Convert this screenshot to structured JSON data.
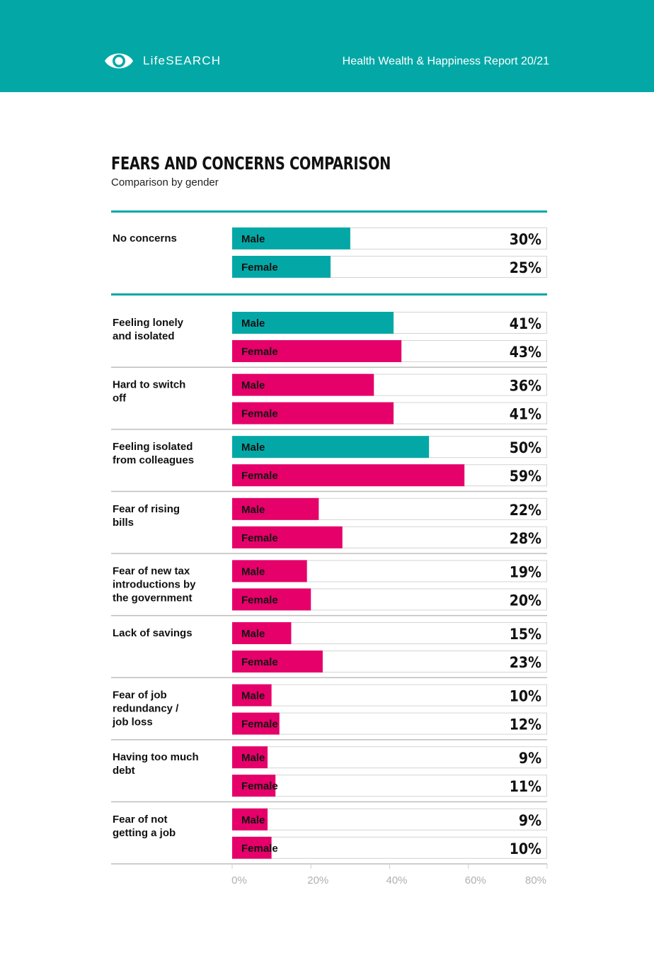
{
  "header": {
    "brand": "LifeSEARCH",
    "report_title": "Health Wealth & Happiness Report 20/21",
    "logo_icon": "eye-logo-icon",
    "background": "#03a8a6"
  },
  "colors": {
    "teal": "#03a8a6",
    "pink": "#e5006a",
    "track_border": "#d4d4d4",
    "divider": "#bdbdbd"
  },
  "chart_data": {
    "type": "bar",
    "orientation": "horizontal",
    "title": "FEARS AND CONCERNS COMPARISON",
    "subtitle": "Comparison by gender",
    "xlim": [
      0,
      80
    ],
    "ticks": [
      "0%",
      "20%",
      "40%",
      "60%",
      "80%"
    ],
    "series_names": [
      "Male",
      "Female"
    ],
    "categories": [
      {
        "label": [
          "No concerns"
        ],
        "male": 30,
        "female": 25,
        "male_value": "30%",
        "female_value": "25%",
        "male_color": "#03a8a6",
        "female_color": "#03a8a6"
      },
      {
        "label": [
          "Feeling lonely",
          "and isolated"
        ],
        "male": 41,
        "female": 43,
        "male_value": "41%",
        "female_value": "43%",
        "male_color": "#03a8a6",
        "female_color": "#e5006a"
      },
      {
        "label": [
          "Hard to switch",
          "off"
        ],
        "male": 36,
        "female": 41,
        "male_value": "36%",
        "female_value": "41%",
        "male_color": "#e5006a",
        "female_color": "#e5006a"
      },
      {
        "label": [
          "Feeling isolated",
          "from colleagues"
        ],
        "male": 50,
        "female": 59,
        "male_value": "50%",
        "female_value": "59%",
        "male_color": "#03a8a6",
        "female_color": "#e5006a"
      },
      {
        "label": [
          "Fear of rising",
          "bills"
        ],
        "male": 22,
        "female": 28,
        "male_value": "22%",
        "female_value": "28%",
        "male_color": "#e5006a",
        "female_color": "#e5006a"
      },
      {
        "label": [
          "Fear of new tax",
          "introductions by",
          "the government"
        ],
        "male": 19,
        "female": 20,
        "male_value": "19%",
        "female_value": "20%",
        "male_color": "#e5006a",
        "female_color": "#e5006a"
      },
      {
        "label": [
          "Lack of savings"
        ],
        "male": 15,
        "female": 23,
        "male_value": "15%",
        "female_value": "23%",
        "male_color": "#e5006a",
        "female_color": "#e5006a"
      },
      {
        "label": [
          "Fear of job",
          "redundancy /",
          "job loss"
        ],
        "male": 10,
        "female": 12,
        "male_value": "10%",
        "female_value": "12%",
        "male_color": "#e5006a",
        "female_color": "#e5006a"
      },
      {
        "label": [
          "Having too much",
          "debt"
        ],
        "male": 9,
        "female": 11,
        "male_value": "9%",
        "female_value": "11%",
        "male_color": "#e5006a",
        "female_color": "#e5006a"
      },
      {
        "label": [
          "Fear of not",
          "getting a job"
        ],
        "male": 9,
        "female": 10,
        "male_value": "9%",
        "female_value": "10%",
        "male_color": "#e5006a",
        "female_color": "#e5006a"
      }
    ]
  }
}
